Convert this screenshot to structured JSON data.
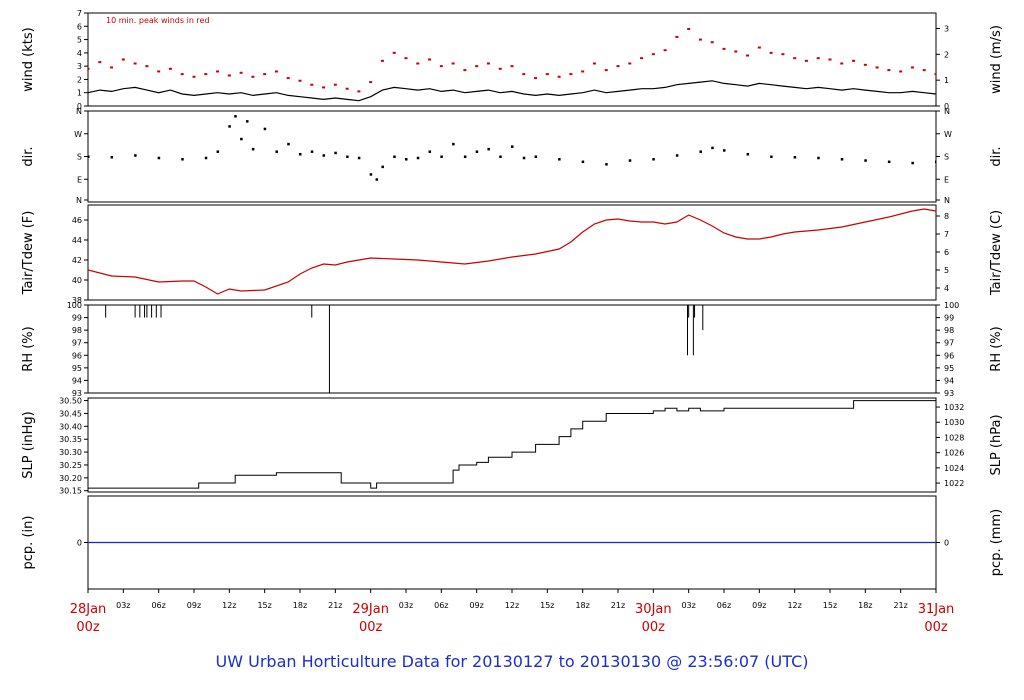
{
  "footer": "UW Urban Horticulture Data for 20130127  to  20130130 @ 23:56:07  (UTC)",
  "colors": {
    "wind": "#000000",
    "peak": "#cc0000",
    "temp": "#cc0000",
    "pcp": "#2222cc",
    "day_labels": "#cc0000",
    "footer": "#1a2fd0"
  },
  "x_axis": {
    "range_hours": [
      0,
      72
    ],
    "day_labels": [
      {
        "hour": 0,
        "day": "28Jan",
        "time": "00z"
      },
      {
        "hour": 24,
        "day": "29Jan",
        "time": "00z"
      },
      {
        "hour": 48,
        "day": "30Jan",
        "time": "00z"
      },
      {
        "hour": 72,
        "day": "31Jan",
        "time": "00z"
      }
    ],
    "hour_labels": [
      "03z",
      "06z",
      "09z",
      "12z",
      "15z",
      "18z",
      "21z"
    ]
  },
  "chart_data": [
    {
      "type": "line",
      "left_label": "wind (kts)",
      "right_label": "wind (m/s)",
      "note": "10 min. peak winds in red",
      "ylim": [
        0,
        7
      ],
      "yticks": [
        "0",
        "1",
        "2",
        "3",
        "4",
        "5",
        "6",
        "7"
      ],
      "right_ylim_ms": [
        0,
        3.6
      ],
      "right_ticks": [
        "0",
        "1",
        "2",
        "3"
      ],
      "series": [
        {
          "role": "mean",
          "x": [
            0,
            1,
            2,
            3,
            4,
            5,
            6,
            7,
            8,
            9,
            10,
            11,
            12,
            13,
            14,
            15,
            16,
            17,
            18,
            19,
            20,
            21,
            22,
            23,
            24,
            25,
            26,
            27,
            28,
            29,
            30,
            31,
            32,
            33,
            34,
            35,
            36,
            37,
            38,
            39,
            40,
            41,
            42,
            43,
            44,
            45,
            46,
            47,
            48,
            49,
            50,
            51,
            52,
            53,
            54,
            55,
            56,
            57,
            58,
            59,
            60,
            61,
            62,
            63,
            64,
            65,
            66,
            67,
            68,
            69,
            70,
            71,
            72
          ],
          "values": [
            1.0,
            1.2,
            1.1,
            1.3,
            1.4,
            1.2,
            1.0,
            1.2,
            0.9,
            0.8,
            0.9,
            1.0,
            0.9,
            1.0,
            0.8,
            0.9,
            1.0,
            0.8,
            0.7,
            0.6,
            0.5,
            0.6,
            0.5,
            0.4,
            0.7,
            1.2,
            1.4,
            1.3,
            1.2,
            1.3,
            1.1,
            1.2,
            1.0,
            1.1,
            1.2,
            1.0,
            1.1,
            0.9,
            0.8,
            0.9,
            0.8,
            0.9,
            1.0,
            1.2,
            1.0,
            1.1,
            1.2,
            1.3,
            1.3,
            1.4,
            1.6,
            1.7,
            1.8,
            1.9,
            1.7,
            1.6,
            1.5,
            1.7,
            1.6,
            1.5,
            1.4,
            1.3,
            1.4,
            1.3,
            1.2,
            1.3,
            1.2,
            1.1,
            1.0,
            1.0,
            1.1,
            1.0,
            0.9
          ]
        },
        {
          "role": "peak",
          "x": [
            0,
            1,
            2,
            3,
            4,
            5,
            6,
            7,
            8,
            9,
            10,
            11,
            12,
            13,
            14,
            15,
            16,
            17,
            18,
            19,
            20,
            21,
            22,
            23,
            24,
            25,
            26,
            27,
            28,
            29,
            30,
            31,
            32,
            33,
            34,
            35,
            36,
            37,
            38,
            39,
            40,
            41,
            42,
            43,
            44,
            45,
            46,
            47,
            48,
            49,
            50,
            51,
            52,
            53,
            54,
            55,
            56,
            57,
            58,
            59,
            60,
            61,
            62,
            63,
            64,
            65,
            66,
            67,
            68,
            69,
            70,
            71,
            72
          ],
          "values": [
            2.8,
            3.3,
            2.9,
            3.5,
            3.2,
            3.0,
            2.6,
            2.8,
            2.4,
            2.2,
            2.4,
            2.6,
            2.3,
            2.5,
            2.2,
            2.4,
            2.6,
            2.1,
            1.9,
            1.6,
            1.4,
            1.6,
            1.3,
            1.1,
            1.8,
            3.4,
            4.0,
            3.6,
            3.2,
            3.5,
            3.0,
            3.2,
            2.7,
            3.0,
            3.2,
            2.8,
            3.0,
            2.4,
            2.1,
            2.4,
            2.2,
            2.4,
            2.6,
            3.2,
            2.7,
            3.0,
            3.2,
            3.6,
            3.9,
            4.2,
            5.2,
            5.8,
            5.0,
            4.8,
            4.3,
            4.1,
            3.8,
            4.4,
            4.0,
            3.9,
            3.6,
            3.4,
            3.6,
            3.5,
            3.2,
            3.4,
            3.1,
            2.9,
            2.7,
            2.6,
            2.9,
            2.7,
            2.4
          ]
        }
      ]
    },
    {
      "type": "scatter",
      "left_label": "dir.",
      "right_label": "dir.",
      "ylim": [
        0,
        360
      ],
      "yticks": [
        "N",
        "E",
        "S",
        "W",
        "N"
      ],
      "right_ticks": [
        "N",
        "E",
        "S",
        "W",
        "N"
      ],
      "x": [
        0,
        2,
        4,
        6,
        8,
        10,
        11,
        12,
        12.5,
        13,
        13.5,
        14,
        15,
        16,
        17,
        18,
        19,
        20,
        21,
        22,
        23,
        24,
        24.5,
        25,
        26,
        27,
        28,
        29,
        30,
        31,
        32,
        33,
        34,
        35,
        36,
        37,
        38,
        40,
        42,
        44,
        46,
        48,
        50,
        52,
        53,
        54,
        56,
        58,
        60,
        62,
        64,
        66,
        68,
        70,
        72
      ],
      "values": [
        180,
        178,
        185,
        175,
        170,
        175,
        200,
        300,
        340,
        250,
        320,
        210,
        290,
        200,
        230,
        190,
        200,
        185,
        195,
        180,
        175,
        110,
        90,
        140,
        180,
        170,
        175,
        200,
        180,
        230,
        180,
        200,
        210,
        180,
        220,
        175,
        180,
        170,
        160,
        150,
        165,
        170,
        185,
        200,
        215,
        205,
        190,
        180,
        178,
        175,
        170,
        165,
        160,
        155,
        160
      ]
    },
    {
      "type": "line",
      "left_label": "Tair/Tdew (F)",
      "right_label": "Tair/Tdew (C)",
      "ylim": [
        38,
        47.5
      ],
      "yticks": [
        "38",
        "40",
        "42",
        "44",
        "46"
      ],
      "right_ticks": [
        "4",
        "5",
        "6",
        "7",
        "8"
      ],
      "x": [
        0,
        2,
        4,
        6,
        8,
        9,
        10,
        11,
        12,
        13,
        15,
        17,
        18,
        19,
        20,
        21,
        22,
        24,
        26,
        28,
        30,
        32,
        34,
        36,
        38,
        40,
        41,
        42,
        43,
        44,
        45,
        46,
        47,
        48,
        49,
        50,
        51,
        52,
        53,
        54,
        55,
        56,
        57,
        58,
        59,
        60,
        62,
        64,
        66,
        68,
        70,
        71,
        72
      ],
      "values": [
        41.0,
        40.4,
        40.3,
        39.8,
        39.9,
        39.9,
        39.3,
        38.6,
        39.1,
        38.9,
        39.0,
        39.8,
        40.6,
        41.2,
        41.6,
        41.5,
        41.8,
        42.2,
        42.1,
        42.0,
        41.8,
        41.6,
        41.9,
        42.3,
        42.6,
        43.1,
        43.8,
        44.8,
        45.6,
        46.0,
        46.1,
        45.9,
        45.8,
        45.8,
        45.6,
        45.8,
        46.5,
        46.0,
        45.4,
        44.7,
        44.3,
        44.1,
        44.1,
        44.3,
        44.6,
        44.8,
        45.0,
        45.3,
        45.8,
        46.3,
        46.9,
        47.1,
        46.9
      ]
    },
    {
      "type": "line",
      "left_label": "RH (%)",
      "right_label": "RH (%)",
      "ylim": [
        93,
        100
      ],
      "yticks": [
        "93",
        "94",
        "95",
        "96",
        "97",
        "98",
        "99",
        "100"
      ],
      "right_ticks": [
        "93",
        "94",
        "95",
        "96",
        "97",
        "98",
        "99",
        "100"
      ],
      "x": [
        0,
        1.5,
        4,
        4.4,
        4.8,
        5,
        5.4,
        5.8,
        6.2,
        19,
        20.5,
        50.9,
        51,
        51.4,
        51.5,
        52.2
      ],
      "values": [
        100,
        99,
        99,
        99,
        99,
        99,
        99,
        99,
        99,
        99,
        93,
        96,
        99,
        96,
        99,
        98
      ]
    },
    {
      "type": "line",
      "left_label": "SLP (inHg)",
      "right_label": "SLP (hPa)",
      "ylim": [
        30.145,
        30.51
      ],
      "yticks": [
        "30.15",
        "30.20",
        "30.25",
        "30.30",
        "30.35",
        "30.40",
        "30.45",
        "30.50"
      ],
      "right_ticks": [
        "1022",
        "1024",
        "1026",
        "1028",
        "1030",
        "1032"
      ],
      "x": [
        0,
        9,
        9.4,
        12,
        12.5,
        15.5,
        16,
        21,
        21.5,
        22,
        23,
        24,
        24.5,
        28,
        31,
        31.5,
        33,
        34,
        36,
        38,
        40,
        41,
        42,
        44,
        47.5,
        48,
        49,
        50,
        51,
        52,
        54,
        57,
        62,
        64,
        65,
        68,
        70,
        72
      ],
      "values": [
        30.16,
        30.16,
        30.18,
        30.18,
        30.21,
        30.21,
        30.22,
        30.22,
        30.18,
        30.18,
        30.18,
        30.16,
        30.18,
        30.18,
        30.23,
        30.25,
        30.26,
        30.28,
        30.3,
        30.33,
        30.36,
        30.39,
        30.42,
        30.45,
        30.45,
        30.46,
        30.47,
        30.46,
        30.47,
        30.46,
        30.47,
        30.47,
        30.47,
        30.47,
        30.5,
        30.5,
        30.5,
        30.5
      ]
    },
    {
      "type": "line",
      "left_label": "pcp. (in)",
      "right_label": "pcp. (mm)",
      "ylim": [
        -1,
        1
      ],
      "yticks": [
        "0"
      ],
      "right_ticks": [
        "0"
      ],
      "x": [
        0,
        72
      ],
      "values": [
        0,
        0
      ]
    }
  ]
}
